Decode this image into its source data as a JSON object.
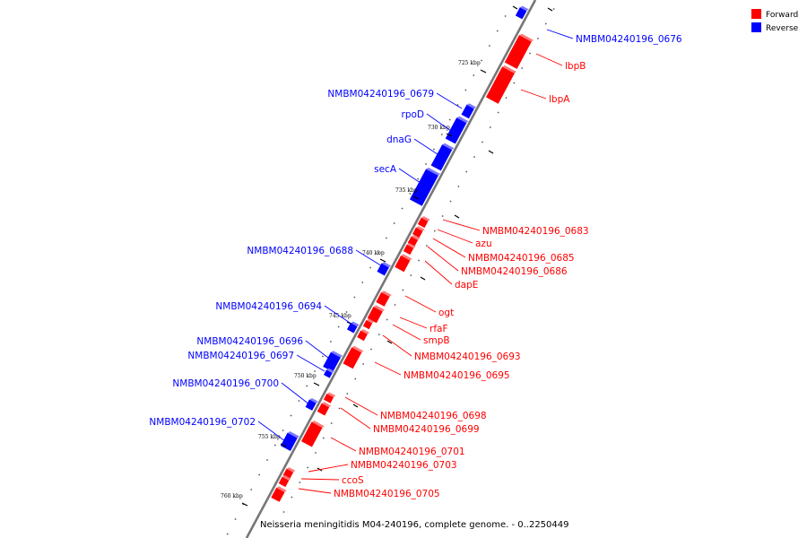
{
  "colors": {
    "forward": "#ff0000",
    "reverse": "#0000ff",
    "axis": "#777777"
  },
  "legend": [
    {
      "label": "Forward",
      "color": "#ff0000"
    },
    {
      "label": "Reverse",
      "color": "#0000ff"
    }
  ],
  "caption": "Neisseria meningitidis M04-240196, complete genome. - 0..2250449",
  "tick_labels": [
    "725 kbp",
    "730 kbp",
    "735 kbp",
    "740 kbp",
    "745 kbp",
    "750 kbp",
    "755 kbp",
    "760 kbp"
  ],
  "genes": [
    {
      "name": "NMBM04240196_0676",
      "strand": "reverse"
    },
    {
      "name": "lbpB",
      "strand": "forward"
    },
    {
      "name": "lbpA",
      "strand": "forward"
    },
    {
      "name": "NMBM04240196_0679",
      "strand": "reverse"
    },
    {
      "name": "rpoD",
      "strand": "reverse"
    },
    {
      "name": "dnaG",
      "strand": "reverse"
    },
    {
      "name": "secA",
      "strand": "reverse"
    },
    {
      "name": "NMBM04240196_0683",
      "strand": "forward"
    },
    {
      "name": "azu",
      "strand": "forward"
    },
    {
      "name": "NMBM04240196_0685",
      "strand": "forward"
    },
    {
      "name": "NMBM04240196_0686",
      "strand": "forward"
    },
    {
      "name": "dapE",
      "strand": "forward"
    },
    {
      "name": "NMBM04240196_0688",
      "strand": "reverse"
    },
    {
      "name": "ogt",
      "strand": "forward"
    },
    {
      "name": "rfaF",
      "strand": "forward"
    },
    {
      "name": "smpB",
      "strand": "forward"
    },
    {
      "name": "NMBM04240196_0693",
      "strand": "forward"
    },
    {
      "name": "NMBM04240196_0694",
      "strand": "reverse"
    },
    {
      "name": "NMBM04240196_0695",
      "strand": "forward"
    },
    {
      "name": "NMBM04240196_0696",
      "strand": "reverse"
    },
    {
      "name": "NMBM04240196_0697",
      "strand": "reverse"
    },
    {
      "name": "NMBM04240196_0698",
      "strand": "forward"
    },
    {
      "name": "NMBM04240196_0699",
      "strand": "forward"
    },
    {
      "name": "NMBM04240196_0700",
      "strand": "reverse"
    },
    {
      "name": "NMBM04240196_0701",
      "strand": "forward"
    },
    {
      "name": "NMBM04240196_0702",
      "strand": "reverse"
    },
    {
      "name": "NMBM04240196_0703",
      "strand": "forward"
    },
    {
      "name": "ccoS",
      "strand": "forward"
    },
    {
      "name": "NMBM04240196_0705",
      "strand": "forward"
    }
  ]
}
